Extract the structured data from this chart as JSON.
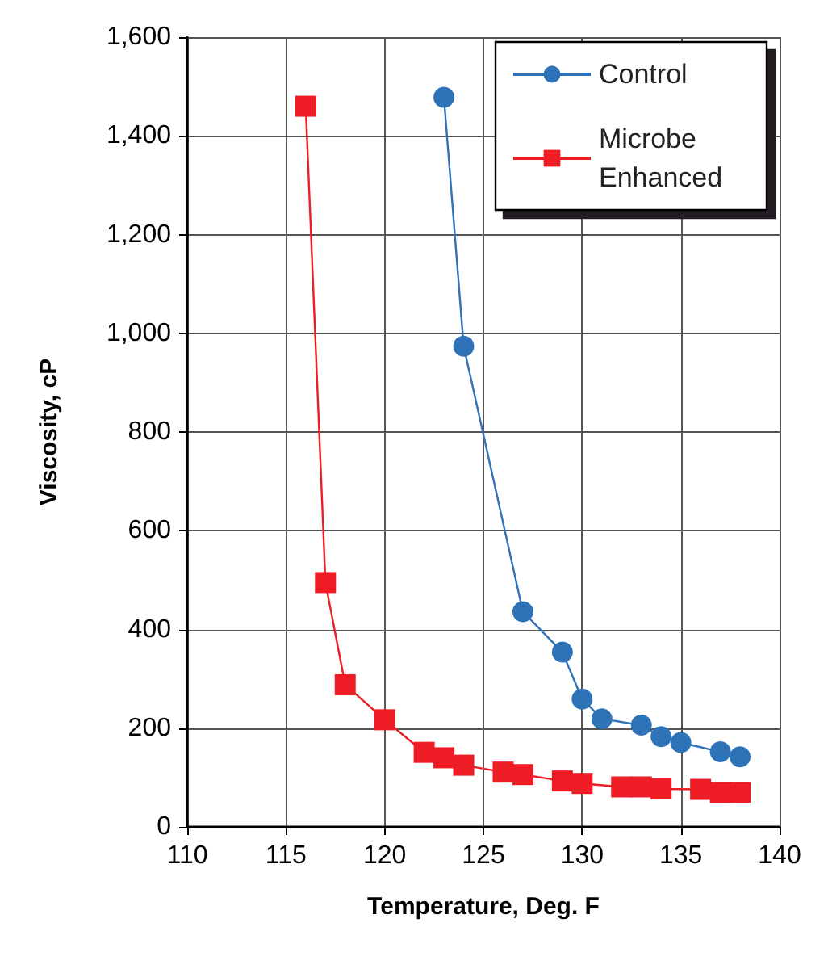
{
  "chart_data": {
    "type": "line",
    "xlabel": "Temperature, Deg. F",
    "ylabel": "Viscosity, cP",
    "xlim": [
      110,
      140
    ],
    "xticks": [
      110,
      115,
      120,
      125,
      130,
      135,
      140
    ],
    "ylim": [
      0,
      1600
    ],
    "yticks": [
      0,
      200,
      400,
      600,
      800,
      {
        "value": 1000,
        "label": "1,000"
      },
      {
        "value": 1200,
        "label": "1,200"
      },
      {
        "value": 1400,
        "label": "1,400"
      },
      {
        "value": 1600,
        "label": "1,600"
      }
    ],
    "grid": true,
    "legend": "top right",
    "line_style": "solid",
    "series": [
      {
        "name": "Control",
        "color": "#2e72b8",
        "marker": "circle",
        "x": [
          123,
          124,
          127,
          129,
          130,
          131,
          133,
          134,
          135,
          137,
          138
        ],
        "values": [
          1478,
          974,
          436,
          354,
          259,
          219,
          206,
          183,
          171,
          152,
          142
        ]
      },
      {
        "name": "Microbe Enhanced",
        "color": "#ee1c25",
        "marker": "square",
        "x": [
          116,
          117,
          118,
          120,
          122,
          123,
          124,
          126,
          127,
          129,
          130,
          132,
          133,
          134,
          136,
          137,
          138
        ],
        "values": [
          1460,
          495,
          288,
          217,
          151,
          140,
          125,
          111,
          106,
          93,
          88,
          81,
          81,
          77,
          76,
          70,
          70
        ]
      }
    ]
  }
}
